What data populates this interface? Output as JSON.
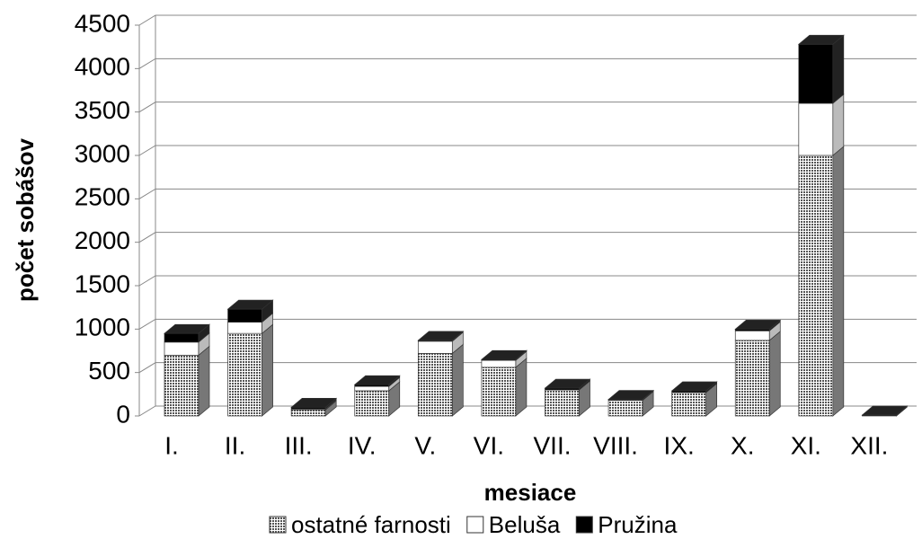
{
  "chart_data": {
    "type": "bar3d_stacked",
    "xlabel": "mesiace",
    "ylabel": "počet sobášov",
    "categories": [
      "I.",
      "II.",
      "III.",
      "IV.",
      "V.",
      "VI.",
      "VII.",
      "VIII.",
      "IX.",
      "X.",
      "XI.",
      "XII."
    ],
    "series": [
      {
        "name": "ostatné farnosti",
        "color": "#8c8c8c",
        "values": [
          700,
          950,
          70,
          290,
          720,
          560,
          300,
          180,
          270,
          870,
          3000,
          0
        ]
      },
      {
        "name": "Beluša",
        "color": "#ffffff",
        "values": [
          150,
          130,
          10,
          50,
          140,
          80,
          0,
          0,
          0,
          110,
          600,
          0
        ]
      },
      {
        "name": "Pružina",
        "color": "#000000",
        "values": [
          100,
          150,
          20,
          20,
          10,
          10,
          20,
          10,
          20,
          20,
          680,
          10
        ]
      }
    ],
    "ylim": [
      0,
      4500
    ],
    "yticks": [
      0,
      500,
      1000,
      1500,
      2000,
      2500,
      3000,
      3500,
      4000,
      4500
    ],
    "grid": true,
    "legend": "bottom"
  }
}
